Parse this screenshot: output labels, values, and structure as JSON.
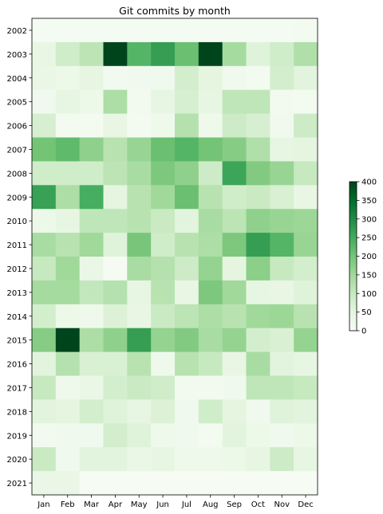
{
  "chart_data": {
    "type": "heatmap",
    "title": "Git commits by month",
    "months": [
      "Jan",
      "Feb",
      "Mar",
      "Apr",
      "May",
      "Jun",
      "Jul",
      "Aug",
      "Sep",
      "Oct",
      "Nov",
      "Dec"
    ],
    "years": [
      "2002",
      "2003",
      "2004",
      "2005",
      "2006",
      "2007",
      "2008",
      "2009",
      "2010",
      "2011",
      "2012",
      "2013",
      "2014",
      "2015",
      "2016",
      "2017",
      "2018",
      "2019",
      "2020",
      "2021"
    ],
    "values": [
      [
        8,
        8,
        8,
        8,
        8,
        8,
        8,
        8,
        8,
        8,
        8,
        12
      ],
      [
        40,
        85,
        115,
        400,
        230,
        270,
        210,
        400,
        145,
        60,
        85,
        130
      ],
      [
        35,
        30,
        45,
        15,
        20,
        20,
        80,
        50,
        20,
        10,
        80,
        55
      ],
      [
        20,
        45,
        30,
        135,
        15,
        45,
        75,
        45,
        110,
        110,
        15,
        10
      ],
      [
        75,
        10,
        10,
        40,
        10,
        25,
        125,
        25,
        90,
        75,
        20,
        90
      ],
      [
        200,
        220,
        170,
        120,
        160,
        210,
        230,
        200,
        180,
        130,
        45,
        50
      ],
      [
        85,
        85,
        85,
        115,
        140,
        190,
        170,
        90,
        260,
        185,
        160,
        100
      ],
      [
        265,
        135,
        245,
        50,
        120,
        150,
        210,
        120,
        85,
        95,
        70,
        40
      ],
      [
        30,
        45,
        110,
        110,
        120,
        95,
        55,
        140,
        115,
        170,
        160,
        155
      ],
      [
        140,
        120,
        150,
        60,
        195,
        85,
        120,
        135,
        190,
        270,
        230,
        160
      ],
      [
        100,
        150,
        35,
        5,
        140,
        125,
        90,
        165,
        50,
        175,
        100,
        80
      ],
      [
        145,
        145,
        105,
        125,
        45,
        120,
        40,
        190,
        150,
        45,
        40,
        60
      ],
      [
        80,
        30,
        25,
        65,
        40,
        95,
        115,
        135,
        120,
        150,
        155,
        120
      ],
      [
        180,
        400,
        135,
        170,
        270,
        165,
        185,
        140,
        165,
        80,
        70,
        165
      ],
      [
        55,
        125,
        70,
        70,
        120,
        25,
        120,
        100,
        40,
        140,
        55,
        45
      ],
      [
        100,
        25,
        35,
        80,
        95,
        85,
        15,
        15,
        20,
        110,
        110,
        100
      ],
      [
        55,
        50,
        80,
        60,
        45,
        65,
        20,
        85,
        50,
        20,
        60,
        55
      ],
      [
        15,
        20,
        20,
        80,
        60,
        25,
        20,
        10,
        55,
        30,
        20,
        30
      ],
      [
        95,
        20,
        55,
        55,
        35,
        45,
        25,
        25,
        30,
        45,
        90,
        45
      ],
      [
        35,
        35,
        4,
        4,
        4,
        4,
        4,
        4,
        4,
        4,
        4,
        4
      ]
    ],
    "colorbar": {
      "min": 0,
      "max": 400,
      "ticks": [
        0,
        50,
        100,
        150,
        200,
        250,
        300,
        350,
        400
      ]
    },
    "colors": [
      "#f7fcf5",
      "#e5f5e0",
      "#c7e9c0",
      "#a1d99b",
      "#74c476",
      "#41ab5d",
      "#238b45",
      "#006d2c",
      "#00441b"
    ]
  }
}
